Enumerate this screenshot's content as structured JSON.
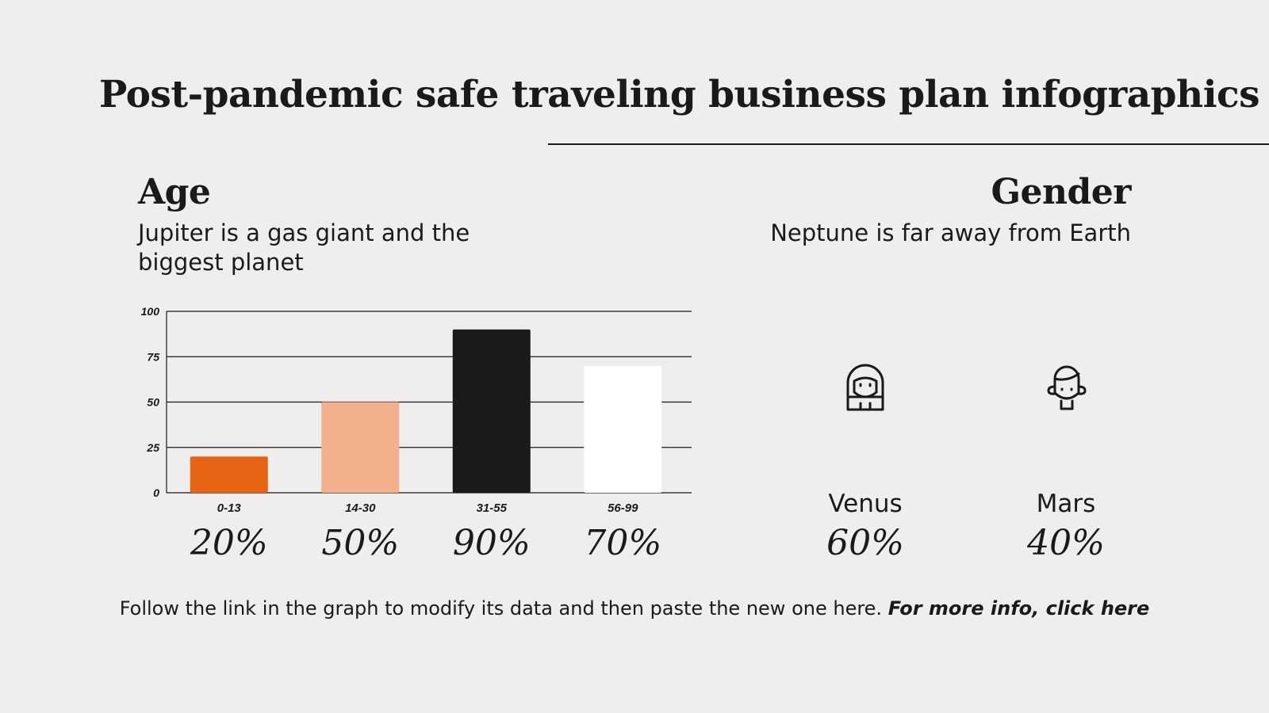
{
  "title": "Post-pandemic safe traveling business plan infographics",
  "age": {
    "heading": "Age",
    "description": "Jupiter is a gas giant and the biggest planet"
  },
  "gender": {
    "heading": "Gender",
    "description": "Neptune is far away from Earth",
    "items": [
      {
        "name": "Venus",
        "percent": "60%",
        "value": 60,
        "color": "#eba070",
        "icon": "woman-icon"
      },
      {
        "name": "Mars",
        "percent": "40%",
        "value": 40,
        "color": "#f2cbb3",
        "icon": "man-icon"
      }
    ]
  },
  "percent_labels": [
    "20%",
    "50%",
    "90%",
    "70%"
  ],
  "footer": {
    "text": "Follow the link in the graph to modify its data and then paste the new one here.",
    "link": "For more info, click here"
  },
  "chart_data": {
    "type": "bar",
    "categories": [
      "0-13",
      "14-30",
      "31-55",
      "56-99"
    ],
    "values": [
      20,
      50,
      90,
      70
    ],
    "colors": [
      "#e56312",
      "#f2b08c",
      "#1a1a1a",
      "#ffffff"
    ],
    "ylim": [
      0,
      100
    ],
    "yticks": [
      0,
      25,
      50,
      75,
      100
    ],
    "grid": true,
    "xlabel": "",
    "ylabel": ""
  }
}
